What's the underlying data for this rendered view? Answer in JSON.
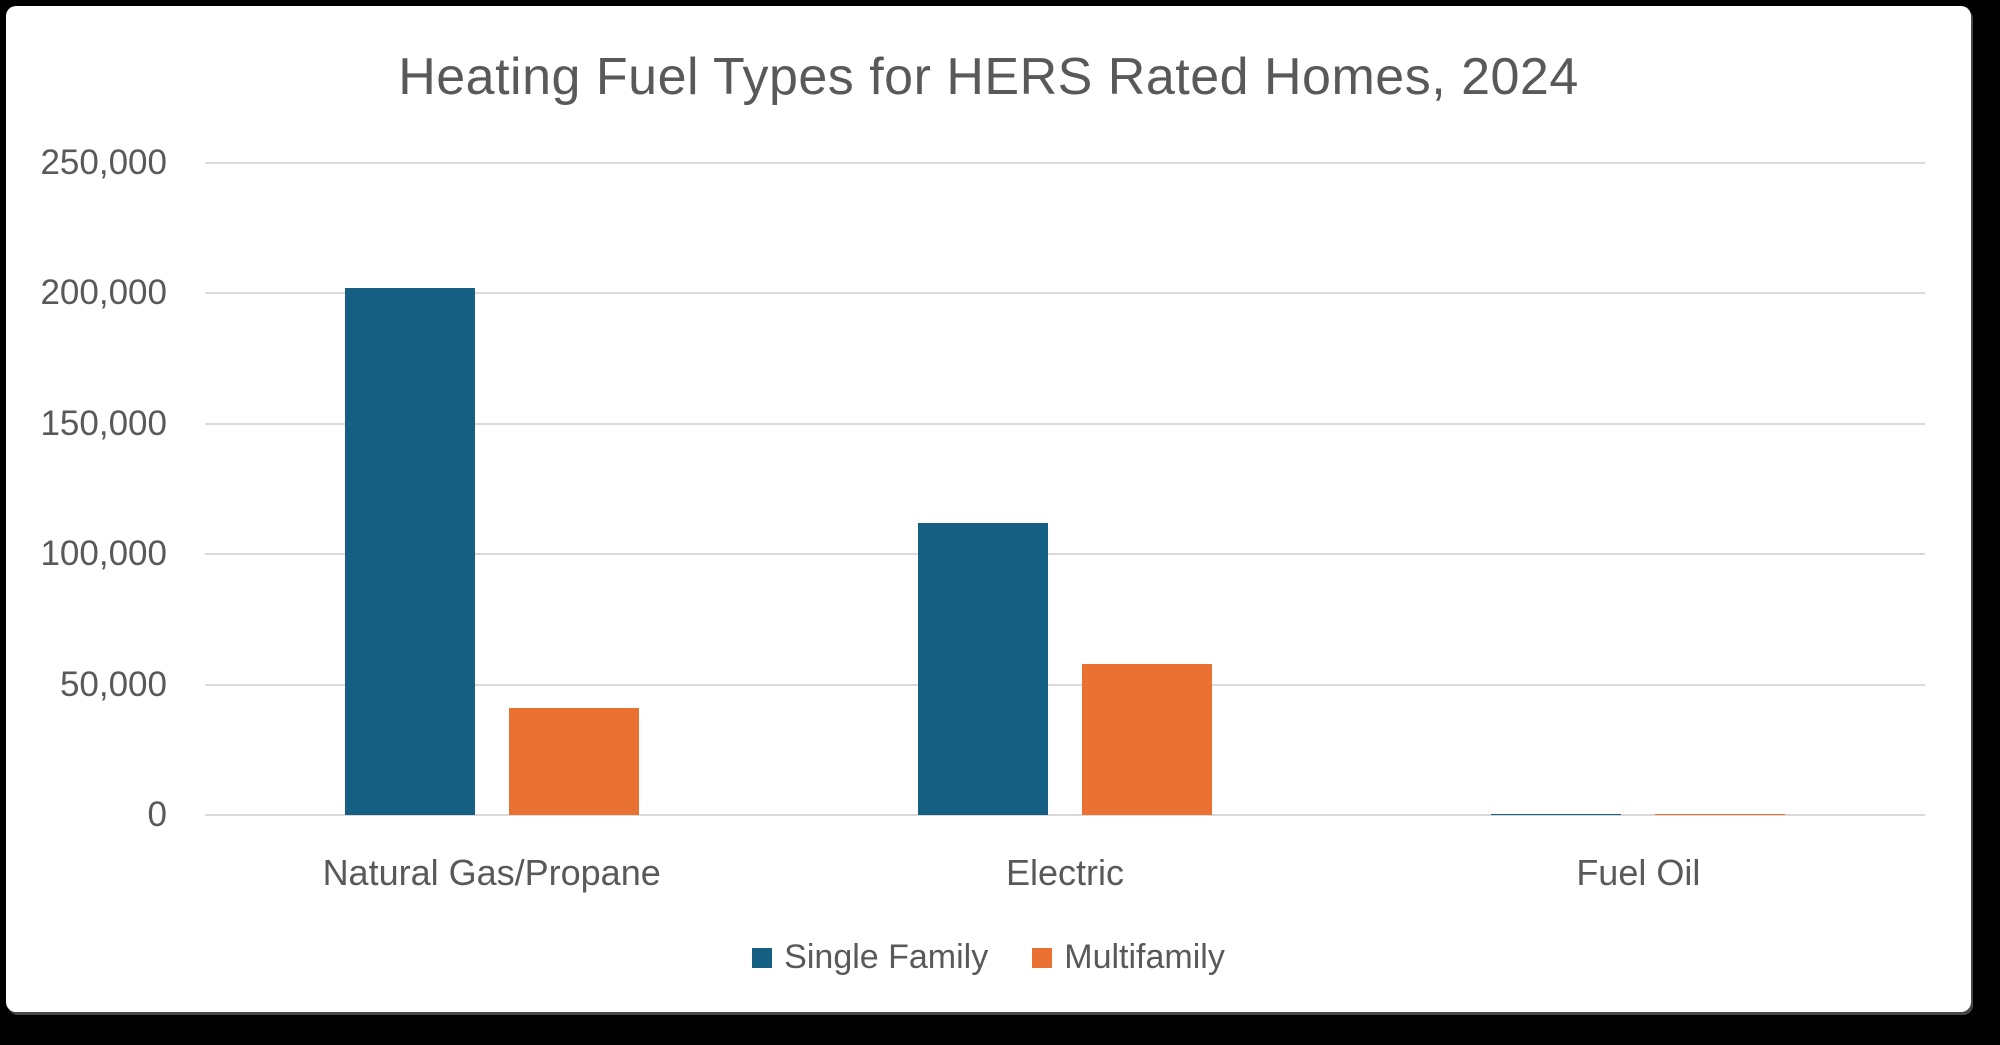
{
  "frame": {
    "background_color": "#000000",
    "panel_color": "#FFFFFF"
  },
  "chart_data": {
    "type": "bar",
    "title": "Heating Fuel Types for HERS Rated Homes, 2024",
    "categories": [
      "Natural Gas/Propane",
      "Electric",
      "Fuel Oil"
    ],
    "series": [
      {
        "name": "Single Family",
        "color": "#156082",
        "values": [
          202000,
          112000,
          500
        ]
      },
      {
        "name": "Multifamily",
        "color": "#E97132",
        "values": [
          41000,
          58000,
          500
        ]
      }
    ],
    "xlabel": "",
    "ylabel": "",
    "ylim": [
      0,
      250000
    ],
    "yticks": [
      0,
      50000,
      100000,
      150000,
      200000,
      250000
    ],
    "ytick_labels": [
      "0",
      "50,000",
      "100,000",
      "150,000",
      "200,000",
      "250,000"
    ],
    "grid": "horizontal",
    "gridline_color": "#D9D9D9",
    "text_color": "#595959",
    "legend_position": "bottom-center"
  }
}
